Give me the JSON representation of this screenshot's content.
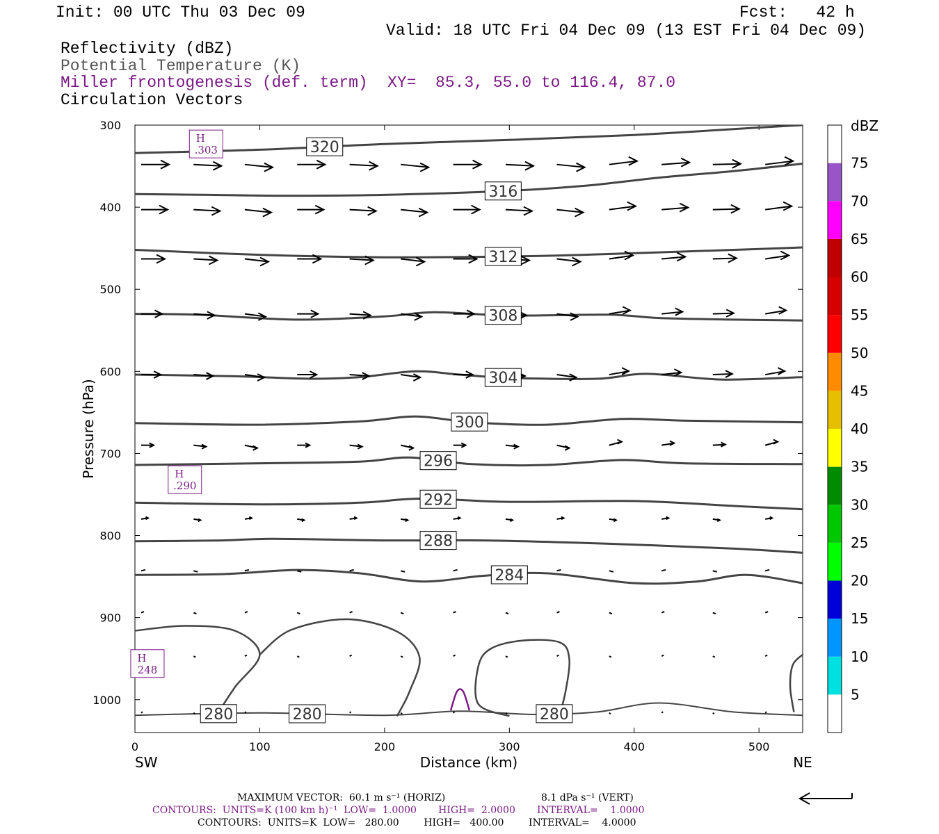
{
  "header": {
    "init": "Init: 00 UTC Thu 03 Dec 09",
    "fcst": "Fcst:   42 h",
    "valid": "Valid: 18 UTC Fri 04 Dec 09 (13 EST Fri 04 Dec 09)",
    "fields": [
      "Reflectivity (dBZ)",
      "Potential Temperature (K)",
      "Miller frontogenesis (def. term)",
      "Circulation Vectors"
    ],
    "xy_label": "XY=  85.3, 55.0 to 116.4, 87.0"
  },
  "chart_data": {
    "type": "line",
    "xlabel": "Distance (km)",
    "ylabel": "Pressure (hPa)",
    "xlim": [
      0,
      535
    ],
    "ylim": [
      1040,
      300
    ],
    "x_ticks": [
      0,
      100,
      200,
      300,
      400,
      500
    ],
    "y_ticks": [
      300,
      400,
      500,
      600,
      700,
      800,
      900,
      1000
    ],
    "endpoints": {
      "left": "SW",
      "right": "NE"
    },
    "theta_contours": [
      {
        "value": 320,
        "label_at": 152,
        "points": [
          [
            0,
            334
          ],
          [
            100,
            330
          ],
          [
            200,
            323
          ],
          [
            300,
            318
          ],
          [
            400,
            312
          ],
          [
            500,
            303
          ],
          [
            535,
            300
          ]
        ]
      },
      {
        "value": 316,
        "label_at": 295,
        "points": [
          [
            0,
            384
          ],
          [
            60,
            385
          ],
          [
            120,
            386
          ],
          [
            200,
            385
          ],
          [
            300,
            380
          ],
          [
            360,
            374
          ],
          [
            420,
            364
          ],
          [
            480,
            356
          ],
          [
            535,
            347
          ]
        ]
      },
      {
        "value": 312,
        "label_at": 295,
        "points": [
          [
            0,
            452
          ],
          [
            100,
            458
          ],
          [
            200,
            461
          ],
          [
            300,
            460
          ],
          [
            360,
            458
          ],
          [
            420,
            455
          ],
          [
            480,
            452
          ],
          [
            535,
            449
          ]
        ]
      },
      {
        "value": 308,
        "label_at": 295,
        "points": [
          [
            0,
            530
          ],
          [
            50,
            531
          ],
          [
            130,
            537
          ],
          [
            200,
            533
          ],
          [
            240,
            528
          ],
          [
            300,
            532
          ],
          [
            380,
            531
          ],
          [
            420,
            535
          ],
          [
            480,
            537
          ],
          [
            535,
            538
          ]
        ]
      },
      {
        "value": 304,
        "label_at": 295,
        "points": [
          [
            0,
            604
          ],
          [
            80,
            606
          ],
          [
            140,
            609
          ],
          [
            180,
            607
          ],
          [
            225,
            600
          ],
          [
            260,
            604
          ],
          [
            300,
            608
          ],
          [
            370,
            609
          ],
          [
            410,
            603
          ],
          [
            470,
            610
          ],
          [
            535,
            607
          ]
        ]
      },
      {
        "value": 300,
        "label_at": 268,
        "points": [
          [
            0,
            663
          ],
          [
            100,
            665
          ],
          [
            180,
            661
          ],
          [
            225,
            655
          ],
          [
            270,
            662
          ],
          [
            330,
            665
          ],
          [
            390,
            658
          ],
          [
            440,
            660
          ],
          [
            535,
            662
          ]
        ]
      },
      {
        "value": 296,
        "label_at": 243,
        "points": [
          [
            0,
            714
          ],
          [
            100,
            712
          ],
          [
            180,
            710
          ],
          [
            220,
            705
          ],
          [
            270,
            713
          ],
          [
            330,
            714
          ],
          [
            390,
            708
          ],
          [
            440,
            712
          ],
          [
            535,
            713
          ]
        ]
      },
      {
        "value": 292,
        "label_at": 243,
        "points": [
          [
            0,
            760
          ],
          [
            100,
            762
          ],
          [
            180,
            760
          ],
          [
            230,
            755
          ],
          [
            300,
            759
          ],
          [
            400,
            758
          ],
          [
            480,
            764
          ],
          [
            535,
            768
          ]
        ]
      },
      {
        "value": 288,
        "label_at": 243,
        "points": [
          [
            0,
            807
          ],
          [
            70,
            806
          ],
          [
            110,
            804
          ],
          [
            200,
            806
          ],
          [
            280,
            806
          ],
          [
            380,
            810
          ],
          [
            480,
            816
          ],
          [
            535,
            821
          ]
        ]
      },
      {
        "value": 284,
        "label_at": 300,
        "points": [
          [
            0,
            848
          ],
          [
            70,
            847
          ],
          [
            130,
            842
          ],
          [
            180,
            846
          ],
          [
            230,
            856
          ],
          [
            280,
            849
          ],
          [
            330,
            846
          ],
          [
            400,
            858
          ],
          [
            450,
            856
          ],
          [
            490,
            848
          ],
          [
            535,
            858
          ]
        ]
      },
      {
        "value": 280,
        "label_at": 67,
        "points": [
          [
            0,
            1019
          ],
          [
            100,
            1016
          ],
          [
            200,
            1019
          ],
          [
            260,
            1014
          ],
          [
            320,
            1018
          ],
          [
            370,
            1015
          ],
          [
            420,
            1004
          ],
          [
            480,
            1015
          ],
          [
            535,
            1019
          ]
        ]
      }
    ],
    "contour_labels_extra": [
      {
        "value": 280,
        "x": 138
      },
      {
        "value": 280,
        "x": 336
      }
    ],
    "closed_contours": [
      {
        "points": [
          [
            0,
            916
          ],
          [
            40,
            910
          ],
          [
            80,
            916
          ],
          [
            100,
            945
          ],
          [
            80,
            985
          ],
          [
            65,
            1020
          ]
        ]
      },
      {
        "points": [
          [
            100,
            945
          ],
          [
            125,
            915
          ],
          [
            170,
            902
          ],
          [
            210,
            917
          ],
          [
            228,
            948
          ],
          [
            220,
            990
          ],
          [
            210,
            1020
          ]
        ]
      },
      {
        "points": [
          [
            300,
            1020
          ],
          [
            275,
            1005
          ],
          [
            275,
            960
          ],
          [
            285,
            938
          ],
          [
            310,
            928
          ],
          [
            340,
            930
          ],
          [
            348,
            950
          ],
          [
            345,
            990
          ],
          [
            340,
            1020
          ]
        ]
      },
      {
        "points": [
          [
            528,
            1015
          ],
          [
            525,
            985
          ],
          [
            527,
            958
          ],
          [
            535,
            945
          ]
        ]
      }
    ],
    "frontogenesis_maxima": [
      {
        "label": "H",
        "value": ".303",
        "x": 57,
        "y": 323
      },
      {
        "label": "H",
        "value": ".290",
        "x": 40,
        "y": 732
      },
      {
        "label": "H",
        "value": "248",
        "x": 10,
        "y": 956
      }
    ],
    "frontogenesis_contour": {
      "points": [
        [
          253,
          1013
        ],
        [
          258,
          990
        ],
        [
          263,
          990
        ],
        [
          268,
          1013
        ]
      ]
    },
    "vector_rows": [
      {
        "p": 348,
        "dx": 40
      },
      {
        "p": 403,
        "dx": 38
      },
      {
        "p": 463,
        "dx": 34
      },
      {
        "p": 530,
        "dx": 30
      },
      {
        "p": 604,
        "dx": 28
      },
      {
        "p": 690,
        "dx": 18
      },
      {
        "p": 780,
        "dx": 10
      },
      {
        "p": 843,
        "dx": 6
      },
      {
        "p": 894,
        "dx": 4
      },
      {
        "p": 947,
        "dx": 3
      },
      {
        "p": 1016,
        "dx": 2
      }
    ],
    "colorbar": {
      "unit": "dBZ",
      "levels": [
        5,
        10,
        15,
        20,
        25,
        30,
        35,
        40,
        45,
        50,
        55,
        60,
        65,
        70,
        75
      ],
      "colors": [
        "#ffffff",
        "#00e0e0",
        "#0096ff",
        "#0000d8",
        "#00ff00",
        "#00c800",
        "#008c00",
        "#ffff00",
        "#e6c000",
        "#ff8c00",
        "#ff0000",
        "#d60000",
        "#c00000",
        "#ff00ff",
        "#9955c8",
        "#ffffff"
      ]
    }
  },
  "footer": {
    "max_vector": "MAXIMUM VECTOR:  60.1 m s⁻¹ (HORIZ)",
    "max_vector_vert": "8.1 dPa s⁻¹ (VERT)",
    "contours_purple": "CONTOURS:  UNITS=K (100 km h)⁻¹  LOW=  1.0000       HIGH=  2.0000       INTERVAL=    1.0000",
    "contours_black": "CONTOURS:  UNITS=K  LOW=   280.00        HIGH=   400.00        INTERVAL=    4.0000"
  }
}
